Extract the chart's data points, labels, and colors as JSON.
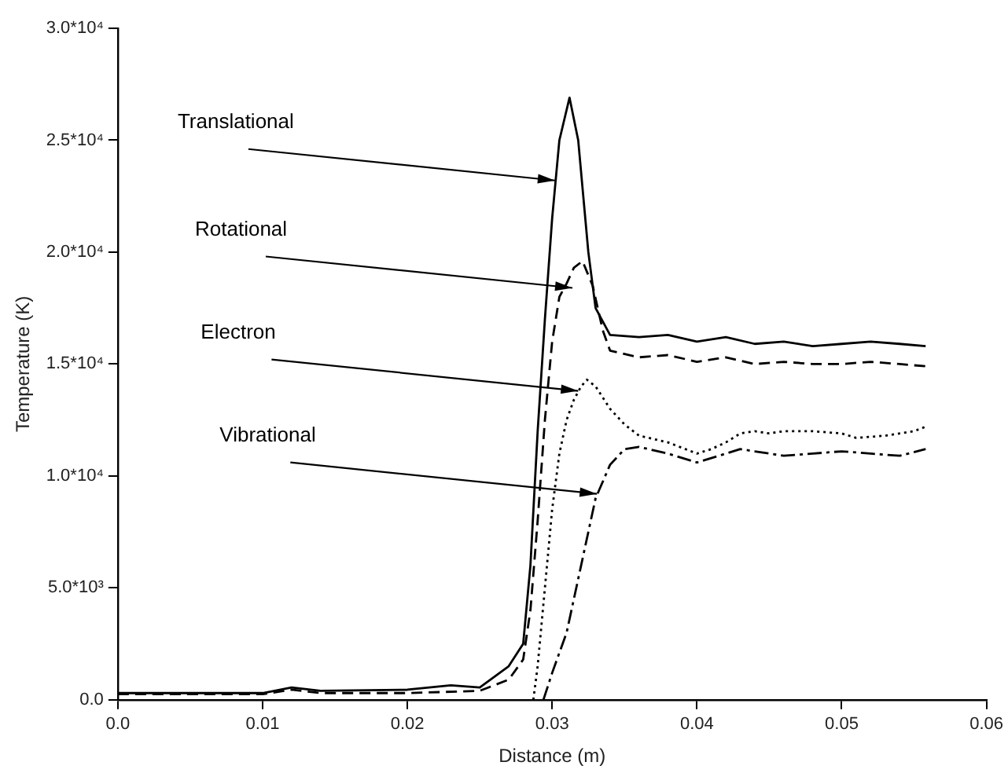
{
  "chart_data": {
    "type": "line",
    "xlabel": "Distance (m)",
    "ylabel": "Temperature (K)",
    "xlim": [
      0,
      0.06
    ],
    "xticks": [
      {
        "value": 0,
        "label": "0.0"
      },
      0.01,
      0.02,
      0.03,
      0.04,
      0.05,
      0.06
    ],
    "ylim": [
      0,
      30000
    ],
    "yticks": [
      {
        "value": 0,
        "label": "0.0"
      },
      {
        "value": 5000,
        "label": "5.0*10³"
      },
      {
        "value": 10000,
        "label": "1.0*10⁴"
      },
      {
        "value": 15000,
        "label": "1.5*10⁴"
      },
      {
        "value": 20000,
        "label": "2.0*10⁴"
      },
      {
        "value": 25000,
        "label": "2.5*10⁴"
      },
      {
        "value": 30000,
        "label": "3.0*10⁴"
      }
    ],
    "grid": false,
    "legend": false,
    "marker": "none",
    "series": [
      {
        "color": "#000000",
        "line_style": "solid",
        "x": [
          0,
          0.01,
          0.012,
          0.014,
          0.02,
          0.023,
          0.025,
          0.027,
          0.028,
          0.0285,
          0.029,
          0.0295,
          0.03,
          0.0305,
          0.0312,
          0.0318,
          0.0325,
          0.033,
          0.034,
          0.036,
          0.038,
          0.04,
          0.042,
          0.044,
          0.046,
          0.048,
          0.05,
          0.052,
          0.054,
          0.0558
        ],
        "values": [
          300,
          300,
          550,
          400,
          450,
          650,
          550,
          1500,
          2500,
          6000,
          12000,
          17000,
          21500,
          25000,
          26900,
          25000,
          20000,
          17500,
          16300,
          16200,
          16300,
          16000,
          16200,
          15900,
          16000,
          15800,
          15900,
          16000,
          15900,
          15800
        ]
      },
      {
        "color": "#000000",
        "line_style": "dashed",
        "x": [
          0,
          0.01,
          0.012,
          0.014,
          0.02,
          0.025,
          0.027,
          0.028,
          0.0285,
          0.029,
          0.0295,
          0.03,
          0.0305,
          0.031,
          0.0315,
          0.0321,
          0.0328,
          0.0335,
          0.034,
          0.036,
          0.038,
          0.04,
          0.042,
          0.044,
          0.046,
          0.048,
          0.05,
          0.052,
          0.054,
          0.0558
        ],
        "values": [
          250,
          250,
          450,
          300,
          300,
          400,
          900,
          1800,
          4000,
          8000,
          12500,
          16000,
          18000,
          18600,
          19300,
          19600,
          18500,
          16500,
          15600,
          15300,
          15400,
          15100,
          15300,
          15000,
          15100,
          15000,
          15000,
          15100,
          15000,
          14900
        ]
      },
      {
        "color": "#000000",
        "line_style": "dotted",
        "x": [
          0.0287,
          0.029,
          0.0295,
          0.03,
          0.0305,
          0.031,
          0.0315,
          0.032,
          0.0324,
          0.033,
          0.034,
          0.035,
          0.036,
          0.038,
          0.04,
          0.041,
          0.042,
          0.043,
          0.044,
          0.045,
          0.046,
          0.048,
          0.05,
          0.051,
          0.053,
          0.055,
          0.0558
        ],
        "values": [
          0,
          1500,
          5000,
          8500,
          11000,
          12500,
          13400,
          14000,
          14300,
          14000,
          13000,
          12300,
          11800,
          11500,
          11000,
          11200,
          11500,
          11900,
          12000,
          11900,
          12000,
          12000,
          11900,
          11700,
          11800,
          12000,
          12200
        ]
      },
      {
        "color": "#000000",
        "line_style": "dashdot",
        "x": [
          0.0294,
          0.03,
          0.031,
          0.032,
          0.033,
          0.034,
          0.035,
          0.036,
          0.038,
          0.04,
          0.042,
          0.043,
          0.044,
          0.046,
          0.048,
          0.05,
          0.052,
          0.054,
          0.0558
        ],
        "values": [
          0,
          1200,
          3000,
          6000,
          9000,
          10500,
          11200,
          11300,
          11000,
          10600,
          11000,
          11200,
          11100,
          10900,
          11000,
          11100,
          11000,
          10900,
          11200
        ]
      }
    ],
    "annotations": [
      {
        "text": "Translational",
        "x": 0.0302,
        "y": 23200
      },
      {
        "text": "Rotational",
        "x": 0.0314,
        "y": 18400
      },
      {
        "text": "Electron",
        "x": 0.0318,
        "y": 13800
      },
      {
        "text": "Vibrational",
        "x": 0.0331,
        "y": 9200
      }
    ]
  }
}
